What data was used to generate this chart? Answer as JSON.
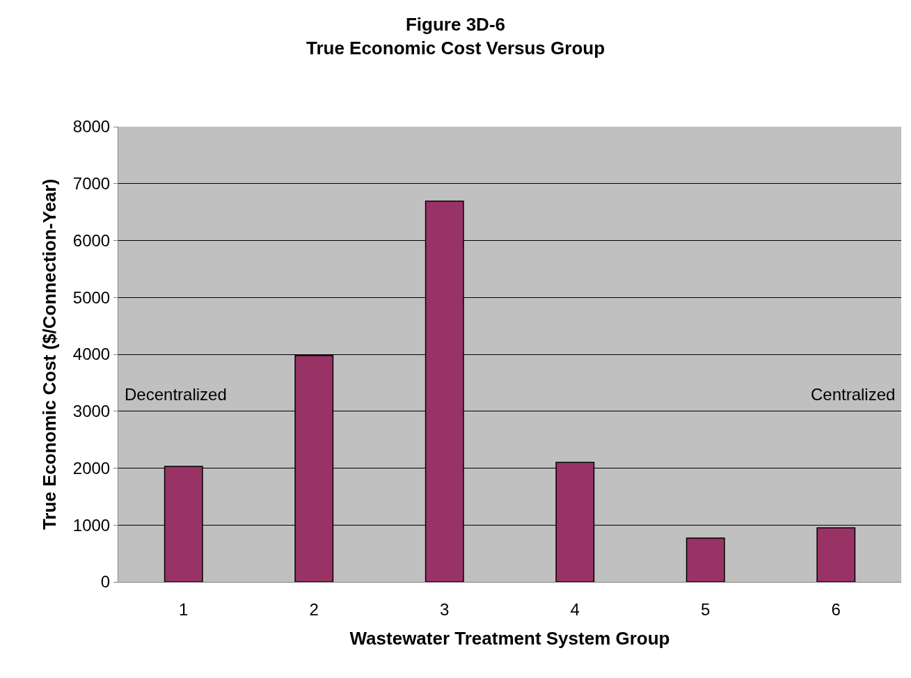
{
  "chart_data": {
    "type": "bar",
    "title": "Figure 3D-6\nTrue Economic Cost Versus Group",
    "xlabel": "Wastewater Treatment System Group",
    "ylabel": "True Economic Cost ($/Connection-Year)",
    "categories": [
      "1",
      "2",
      "3",
      "4",
      "5",
      "6"
    ],
    "values": [
      2030,
      3980,
      6690,
      2100,
      770,
      950
    ],
    "color": "#993366",
    "ylim": [
      0,
      8000
    ],
    "yticks": [
      0,
      1000,
      2000,
      3000,
      4000,
      5000,
      6000,
      7000,
      8000
    ],
    "grid": "y",
    "annotations": [
      "Decentralized",
      "Centralized"
    ]
  }
}
